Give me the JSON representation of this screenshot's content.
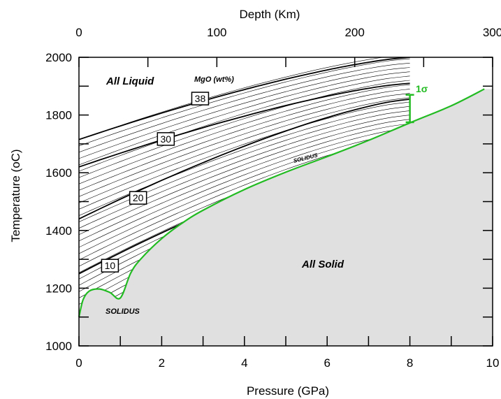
{
  "chart_data": {
    "type": "line",
    "xlabel": "Pressure  (GPa)",
    "x2label": "Depth (Km)",
    "ylabel": "Temperature   (",
    "ylabel_unit": "oC)",
    "xlim": [
      0,
      10
    ],
    "ylim": [
      1000,
      2000
    ],
    "x2lim": [
      0,
      300
    ],
    "x_ticks": [
      "0",
      "2",
      "4",
      "6",
      "8",
      "10"
    ],
    "x2_ticks": [
      "0",
      "100",
      "200",
      "300"
    ],
    "y_ticks": [
      "1000",
      "1200",
      "1400",
      "1600",
      "1800",
      "2000"
    ],
    "grid": false,
    "colors": {
      "solidus": "#22bb22",
      "solid_fill": "#e0e0e0",
      "contours": "#000000"
    },
    "series": [
      {
        "name": "SOLIDUS",
        "x": [
          0,
          0.1,
          0.25,
          0.5,
          0.75,
          1.0,
          1.25,
          1.5,
          2,
          2.5,
          3,
          4,
          5,
          6,
          7,
          8,
          9,
          9.8
        ],
        "y": [
          1100,
          1160,
          1190,
          1197,
          1185,
          1166,
          1252,
          1302,
          1372,
          1426,
          1470,
          1542,
          1602,
          1656,
          1712,
          1773,
          1832,
          1890
        ]
      }
    ],
    "contours": [
      {
        "label": "10",
        "x": [
          0,
          8
        ],
        "y": [
          1250,
          1690
        ]
      },
      {
        "label": "20",
        "x": [
          0,
          8
        ],
        "y": [
          1440,
          1855
        ]
      },
      {
        "label": "30",
        "x": [
          0,
          8
        ],
        "y": [
          1620,
          1910
        ]
      },
      {
        "label": "38",
        "x": [
          0,
          8
        ],
        "y": [
          1715,
          2000
        ]
      }
    ],
    "contour_labels": [
      "10",
      "20",
      "30",
      "38"
    ],
    "error_bar": {
      "label": "1σ",
      "x": 8,
      "y_low": 1775,
      "y_high": 1870
    },
    "annotations": {
      "all_liquid": "All Liquid",
      "mgo": "MgO (wt%)",
      "all_solid": "All Solid",
      "solidus_upper": "SOLIDUS",
      "solidus_lower": "SOLIDUS"
    }
  }
}
